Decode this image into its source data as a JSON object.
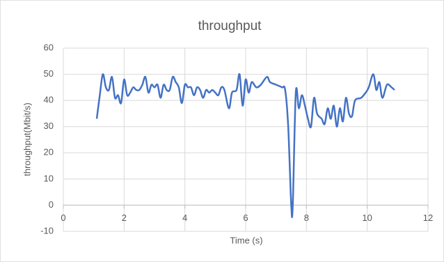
{
  "chart_data": {
    "type": "line",
    "title": "throughput",
    "x_label": "Time (s)",
    "y_label": "throughput(Mbit/s)",
    "x": [
      1.1,
      1.2,
      1.3,
      1.4,
      1.5,
      1.6,
      1.7,
      1.8,
      1.9,
      2.0,
      2.1,
      2.2,
      2.3,
      2.4,
      2.5,
      2.6,
      2.7,
      2.8,
      2.9,
      3.0,
      3.1,
      3.2,
      3.3,
      3.4,
      3.5,
      3.6,
      3.7,
      3.8,
      3.9,
      4.0,
      4.1,
      4.2,
      4.3,
      4.4,
      4.5,
      4.6,
      4.7,
      4.8,
      4.9,
      5.0,
      5.1,
      5.2,
      5.3,
      5.45,
      5.55,
      5.7,
      5.8,
      5.9,
      6.0,
      6.1,
      6.2,
      6.35,
      6.5,
      6.7,
      6.8,
      7.0,
      7.2,
      7.3,
      7.4,
      7.5,
      7.55,
      7.65,
      7.75,
      7.85,
      7.95,
      8.05,
      8.15,
      8.25,
      8.35,
      8.5,
      8.6,
      8.7,
      8.8,
      8.9,
      9.0,
      9.1,
      9.2,
      9.3,
      9.4,
      9.5,
      9.6,
      9.8,
      9.95,
      10.05,
      10.2,
      10.3,
      10.4,
      10.5,
      10.65,
      10.8,
      10.9
    ],
    "values": [
      33,
      42,
      50,
      45,
      44,
      49,
      41,
      42,
      39,
      48,
      42,
      43,
      45,
      44,
      44,
      46,
      49,
      43,
      46,
      45,
      46,
      41,
      46,
      44,
      44,
      49,
      47,
      45,
      39,
      46,
      45,
      45,
      42,
      45,
      44,
      41,
      44,
      43,
      44,
      43,
      42,
      45,
      44,
      37,
      43,
      44,
      50,
      38,
      48,
      43,
      47,
      45,
      46,
      49,
      47,
      46,
      45,
      44,
      30,
      0,
      0,
      43,
      37,
      42,
      38,
      33,
      30,
      41,
      35,
      33,
      31,
      37,
      33,
      38,
      30,
      37,
      32,
      41,
      35,
      34,
      40,
      41,
      43,
      45,
      50,
      44,
      47,
      41,
      46,
      45,
      44
    ],
    "color": "#4472c4",
    "xlim": [
      0,
      12
    ],
    "xticks": [
      0,
      2,
      4,
      6,
      8,
      10,
      12
    ],
    "ylim": [
      -10,
      60
    ],
    "yticks": [
      -10,
      0,
      10,
      20,
      30,
      40,
      50,
      60
    ],
    "grid": true
  }
}
